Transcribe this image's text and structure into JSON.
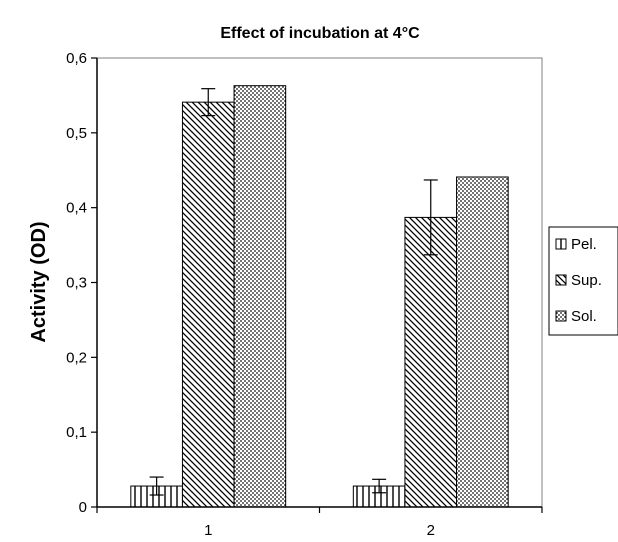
{
  "chart_data": {
    "type": "bar",
    "title": "Effect of incubation at 4°C",
    "xlabel": "",
    "ylabel": "Activity (OD)",
    "categories": [
      "1",
      "2"
    ],
    "ylim": [
      0,
      0.6
    ],
    "yticks": [
      "0",
      "0,1",
      "0,2",
      "0,3",
      "0,4",
      "0,5",
      "0,6"
    ],
    "grid": false,
    "legend_position": "right",
    "series": [
      {
        "name": "Pel.",
        "pattern": "vertical-lines",
        "values": [
          0.028,
          0.028
        ],
        "errors": [
          0.012,
          0.009
        ]
      },
      {
        "name": "Sup.",
        "pattern": "diagonal-lines",
        "values": [
          0.541,
          0.387
        ],
        "errors": [
          0.018,
          0.05
        ]
      },
      {
        "name": "Sol.",
        "pattern": "dots",
        "values": [
          0.563,
          0.441
        ],
        "errors": [
          null,
          null
        ]
      }
    ]
  }
}
